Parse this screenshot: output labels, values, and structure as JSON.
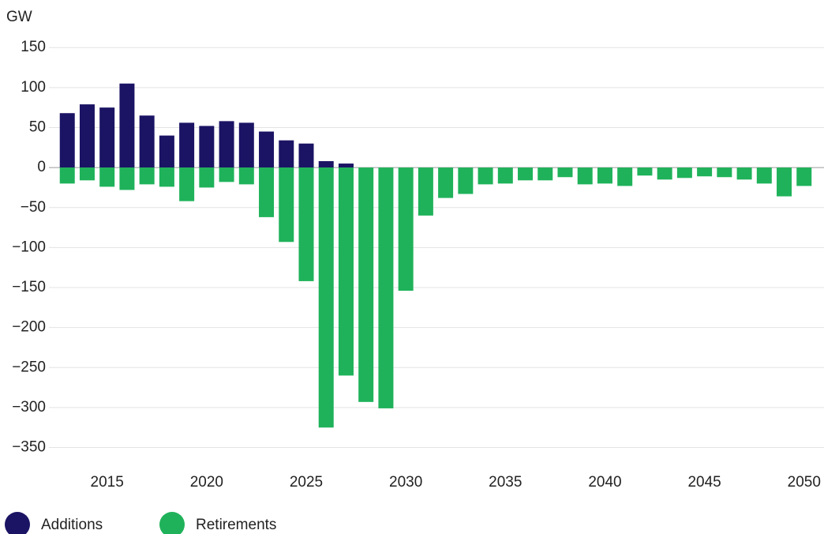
{
  "chart_data": {
    "type": "bar",
    "y_label": "GW",
    "x": [
      2013,
      2014,
      2015,
      2016,
      2017,
      2018,
      2019,
      2020,
      2021,
      2022,
      2023,
      2024,
      2025,
      2026,
      2027,
      2028,
      2029,
      2030,
      2031,
      2032,
      2033,
      2034,
      2035,
      2036,
      2037,
      2038,
      2039,
      2040,
      2041,
      2042,
      2043,
      2044,
      2045,
      2046,
      2047,
      2048,
      2049,
      2050
    ],
    "series": [
      {
        "name": "Additions",
        "color": "#1b1464",
        "values": [
          68,
          79,
          75,
          105,
          65,
          40,
          56,
          52,
          58,
          56,
          45,
          34,
          30,
          8,
          5,
          null,
          null,
          null,
          null,
          null,
          null,
          null,
          null,
          null,
          null,
          null,
          null,
          null,
          null,
          null,
          null,
          null,
          null,
          null,
          null,
          null,
          null,
          null
        ]
      },
      {
        "name": "Retirements",
        "color": "#1fb25a",
        "values": [
          -20,
          -16,
          -24,
          -28,
          -21,
          -24,
          -42,
          -25,
          -18,
          -21,
          -62,
          -93,
          -142,
          -325,
          -260,
          -293,
          -301,
          -154,
          -60,
          -38,
          -33,
          -21,
          -20,
          -16,
          -16,
          -12,
          -21,
          -20,
          -23,
          -10,
          -15,
          -13,
          -11,
          -12,
          -15,
          -20,
          -36,
          -23
        ]
      }
    ],
    "xlim": [
      2012,
      2051
    ],
    "xticks": [
      2015,
      2020,
      2025,
      2030,
      2035,
      2040,
      2045,
      2050
    ],
    "ylim": [
      -385,
      165
    ],
    "yticks": [
      150,
      100,
      50,
      0,
      {
        "value": -50,
        "label": "−50"
      },
      {
        "value": -100,
        "label": "−100"
      },
      {
        "value": -150,
        "label": "−150"
      },
      {
        "value": -200,
        "label": "−200"
      },
      {
        "value": -250,
        "label": "−250"
      },
      {
        "value": -300,
        "label": "−300"
      },
      {
        "value": -350,
        "label": "−350"
      }
    ],
    "grid": true,
    "legend": "bottom-left"
  }
}
